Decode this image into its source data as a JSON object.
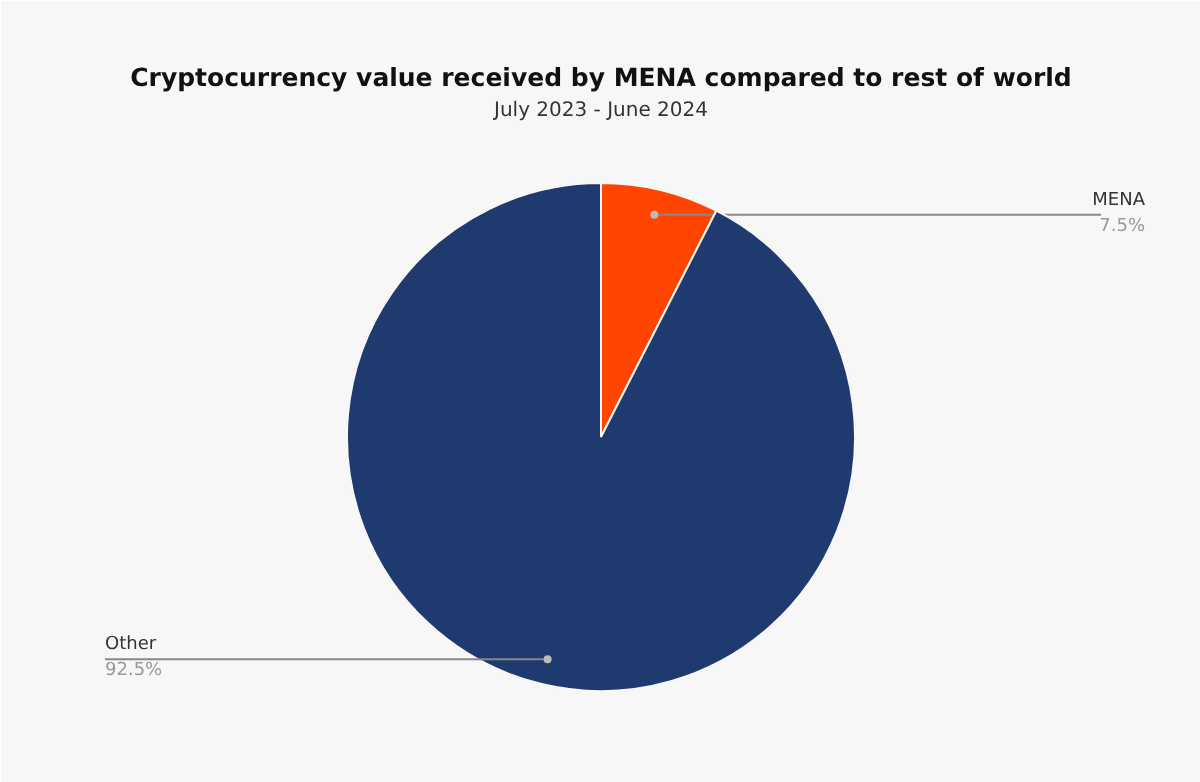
{
  "chart_data": {
    "type": "pie",
    "title": "Cryptocurrency value received by MENA compared to rest of world",
    "subtitle": "July 2023 - June 2024",
    "categories": [
      "MENA",
      "Other"
    ],
    "values": [
      7.5,
      92.5
    ],
    "colors": [
      "#ff4500",
      "#1f3a6e"
    ],
    "value_labels": [
      "7.5%",
      "92.5%"
    ]
  }
}
